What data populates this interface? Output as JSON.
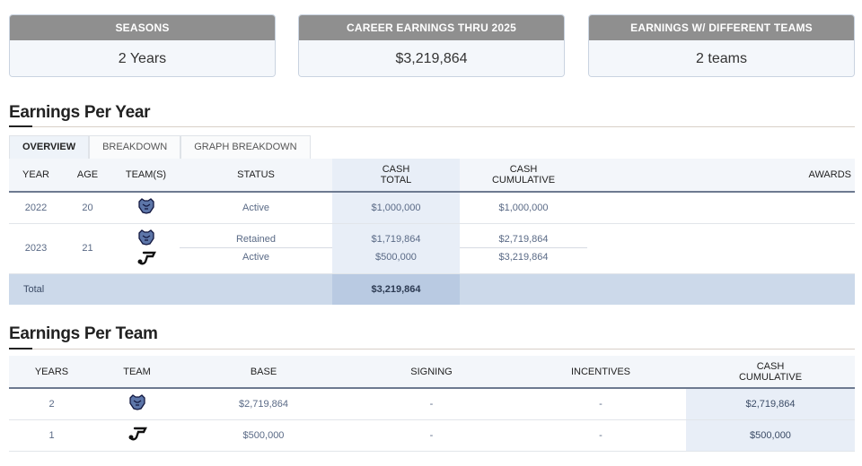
{
  "cards": [
    {
      "label": "SEASONS",
      "value": "2 Years"
    },
    {
      "label": "CAREER EARNINGS THRU 2025",
      "value": "$3,219,864"
    },
    {
      "label": "EARNINGS W/ DIFFERENT TEAMS",
      "value": "2 teams"
    }
  ],
  "earnings_per_year": {
    "title": "Earnings Per Year",
    "tabs": [
      "OVERVIEW",
      "BREAKDOWN",
      "GRAPH BREAKDOWN"
    ],
    "headers": {
      "year": "YEAR",
      "age": "AGE",
      "teams": "TEAM(S)",
      "status": "STATUS",
      "cash_total_1": "CASH",
      "cash_total_2": "TOTAL",
      "cash_cum_1": "CASH",
      "cash_cum_2": "CUMULATIVE",
      "awards": "AWARDS"
    },
    "rows": [
      {
        "year": "2022",
        "age": "20",
        "teams": [
          "grizzlies-logo"
        ],
        "status": [
          "Active"
        ],
        "cash_total": [
          "$1,000,000"
        ],
        "cash_cumulative": [
          "$1,000,000"
        ]
      },
      {
        "year": "2023",
        "age": "21",
        "teams": [
          "grizzlies-logo",
          "jazz-logo"
        ],
        "status": [
          "Retained",
          "Active"
        ],
        "cash_total": [
          "$1,719,864",
          "$500,000"
        ],
        "cash_cumulative": [
          "$2,719,864",
          "$3,219,864"
        ]
      }
    ],
    "total": {
      "label": "Total",
      "cash_total": "$3,219,864"
    }
  },
  "earnings_per_team": {
    "title": "Earnings Per Team",
    "headers": {
      "years": "YEARS",
      "team": "TEAM",
      "base": "BASE",
      "signing": "SIGNING",
      "incentives": "INCENTIVES",
      "cash_1": "CASH",
      "cash_2": "CUMULATIVE"
    },
    "rows": [
      {
        "years": "2",
        "team": "grizzlies-logo",
        "base": "$2,719,864",
        "signing": "-",
        "incentives": "-",
        "cash": "$2,719,864"
      },
      {
        "years": "1",
        "team": "jazz-logo",
        "base": "$500,000",
        "signing": "-",
        "incentives": "-",
        "cash": "$500,000"
      }
    ]
  },
  "colors": {
    "card_header": "#8f8f8f",
    "highlight_col": "#e8eef7",
    "total_row": "#ccd9ea"
  }
}
